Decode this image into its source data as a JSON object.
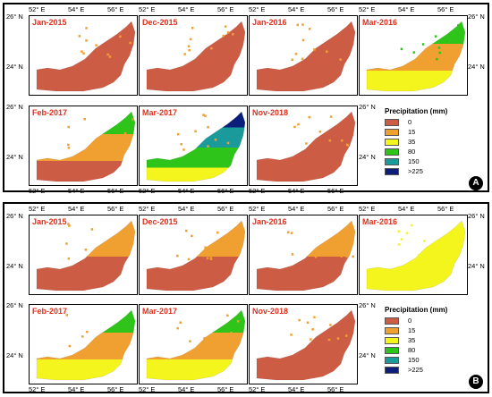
{
  "figure": {
    "panel_a_label": "A",
    "panel_b_label": "B"
  },
  "legend": {
    "title": "Precipitation (mm)",
    "items": [
      {
        "label": "0",
        "color": "#cd5c45"
      },
      {
        "label": "15",
        "color": "#f0a030"
      },
      {
        "label": "35",
        "color": "#f5f51e"
      },
      {
        "label": "80",
        "color": "#2ec41a"
      },
      {
        "label": "150",
        "color": "#1a9a9a"
      },
      {
        "label": ">225",
        "color": "#0a1e7a"
      }
    ]
  },
  "axes": {
    "lon_ticks": [
      "52° E",
      "54° E",
      "56° E"
    ],
    "lat_ticks": [
      "26° N",
      "24° N"
    ]
  },
  "panel_a": {
    "maps": [
      {
        "title": "Jan-2015",
        "levels": [
          0
        ],
        "speckle": "orange"
      },
      {
        "title": "Dec-2015",
        "levels": [
          0
        ],
        "speckle": "orange"
      },
      {
        "title": "Jan-2016",
        "levels": [
          0
        ],
        "speckle": "orange"
      },
      {
        "title": "Mar-2016",
        "levels": [
          2,
          1,
          3
        ],
        "speckle": "green"
      },
      {
        "title": "Feb-2017",
        "levels": [
          0,
          1,
          3
        ],
        "speckle": "orange"
      },
      {
        "title": "Mar-2017",
        "levels": [
          2,
          3,
          4,
          5
        ],
        "speckle": "orange"
      },
      {
        "title": "Nov-2018",
        "levels": [
          0
        ],
        "speckle": "orange"
      }
    ]
  },
  "panel_b": {
    "maps": [
      {
        "title": "Jan-2015",
        "levels": [
          0,
          1
        ],
        "speckle": "orange"
      },
      {
        "title": "Dec-2015",
        "levels": [
          0,
          1
        ],
        "speckle": "orange"
      },
      {
        "title": "Jan-2016",
        "levels": [
          0,
          1
        ],
        "speckle": "orange"
      },
      {
        "title": "Mar-2016",
        "levels": [
          2
        ],
        "speckle": "yellow"
      },
      {
        "title": "Feb-2017",
        "levels": [
          2,
          1,
          3
        ],
        "speckle": "orange"
      },
      {
        "title": "Mar-2017",
        "levels": [
          2,
          1,
          3
        ],
        "speckle": "orange"
      },
      {
        "title": "Nov-2018",
        "levels": [
          0
        ],
        "speckle": "orange"
      }
    ]
  }
}
